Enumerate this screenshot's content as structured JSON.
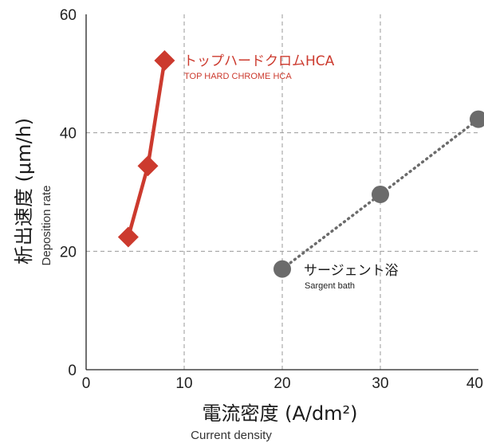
{
  "chart_data": {
    "type": "line",
    "xlabel": "電流密度 (A/dm²)",
    "xlabel_sub": "Current density",
    "ylabel": "析出速度 (μm/h)",
    "ylabel_sub": "Deposition rate",
    "xlim": [
      0,
      40
    ],
    "ylim": [
      0,
      60
    ],
    "x_ticks": [
      0,
      10,
      20,
      30,
      40
    ],
    "y_ticks": [
      0,
      20,
      40,
      60
    ],
    "grid": true,
    "series": [
      {
        "name": "トップハードクロムHCA",
        "name_sub": "TOP HARD CHROME HCA",
        "color": "#cc3a2e",
        "marker": "diamond",
        "line_style": "solid",
        "x": [
          4.3,
          6.3,
          8.0
        ],
        "y": [
          22.4,
          34.4,
          52.2
        ]
      },
      {
        "name": "サージェント浴",
        "name_sub": "Sargent bath",
        "color": "#6b6b6b",
        "marker": "circle",
        "line_style": "dotted",
        "x": [
          20,
          30,
          40
        ],
        "y": [
          17.0,
          29.6,
          42.3
        ]
      }
    ]
  }
}
